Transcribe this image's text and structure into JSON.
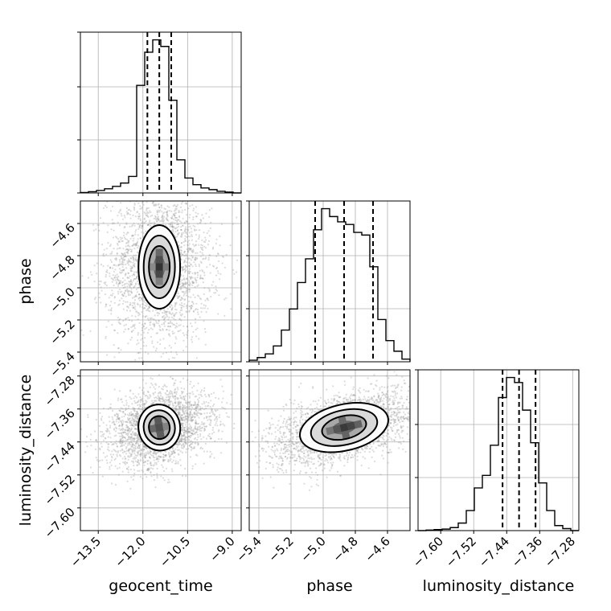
{
  "chart_data": {
    "type": "corner",
    "parameters": [
      "geocent_time",
      "phase",
      "luminosity_distance"
    ],
    "axis_labels": {
      "geocent_time": "geocent_time",
      "phase": "phase",
      "luminosity_distance": "luminosity_distance"
    },
    "ranges": {
      "geocent_time": [
        -14.1,
        -8.7
      ],
      "phase": [
        -5.46,
        -4.46
      ],
      "luminosity_distance": [
        -7.655,
        -7.265
      ]
    },
    "ticks": {
      "geocent_time": [
        -13.5,
        -12.0,
        -10.5,
        -9.0
      ],
      "phase": [
        -5.4,
        -5.2,
        -5.0,
        -4.8,
        -4.6
      ],
      "luminosity_distance": [
        -7.6,
        -7.52,
        -7.44,
        -7.36,
        -7.28
      ]
    },
    "tick_labels": {
      "geocent_time": [
        "−13.5",
        "−12.0",
        "−10.5",
        "−9.0"
      ],
      "phase": [
        "−5.4",
        "−5.2",
        "−5.0",
        "−4.8",
        "−4.6"
      ],
      "luminosity_distance": [
        "−7.60",
        "−7.52",
        "−7.44",
        "−7.36",
        "−7.28"
      ]
    },
    "quantiles": {
      "geocent_time": [
        -11.85,
        -11.45,
        -11.05
      ],
      "phase": [
        -5.05,
        -4.87,
        -4.69
      ],
      "luminosity_distance": [
        -7.45,
        -7.41,
        -7.37
      ]
    },
    "histograms": {
      "geocent_time": {
        "edges": [
          -14.1,
          -13.83,
          -13.56,
          -13.29,
          -13.02,
          -12.75,
          -12.48,
          -12.21,
          -11.94,
          -11.67,
          -11.4,
          -11.13,
          -10.86,
          -10.59,
          -10.32,
          -10.05,
          -9.78,
          -9.51,
          -9.24,
          -8.97,
          -8.7
        ],
        "counts": [
          0.5,
          1.5,
          3,
          5,
          8,
          12,
          20,
          130,
          170,
          185,
          177,
          112,
          40,
          18,
          10,
          6,
          4,
          2,
          1,
          0
        ]
      },
      "phase": {
        "edges": [
          -5.46,
          -5.41,
          -5.36,
          -5.31,
          -5.26,
          -5.21,
          -5.16,
          -5.11,
          -5.06,
          -5.01,
          -4.96,
          -4.91,
          -4.86,
          -4.81,
          -4.76,
          -4.71,
          -4.66,
          -4.61,
          -4.56,
          -4.51,
          -4.46
        ],
        "counts": [
          3,
          8,
          15,
          30,
          60,
          100,
          150,
          195,
          250,
          290,
          275,
          265,
          260,
          245,
          240,
          180,
          80,
          40,
          20,
          5
        ]
      },
      "luminosity_distance": {
        "edges": [
          -7.655,
          -7.6355,
          -7.616,
          -7.5965,
          -7.577,
          -7.5575,
          -7.538,
          -7.5185,
          -7.499,
          -7.4795,
          -7.46,
          -7.4405,
          -7.421,
          -7.4015,
          -7.382,
          -7.3625,
          -7.343,
          -7.3235,
          -7.304,
          -7.2845,
          -7.265
        ],
        "counts": [
          0,
          1,
          2,
          3,
          6,
          15,
          40,
          85,
          110,
          170,
          265,
          305,
          295,
          240,
          175,
          95,
          40,
          10,
          4,
          0
        ]
      }
    },
    "pairs": [
      {
        "x": "geocent_time",
        "y": "phase",
        "center": [
          -11.45,
          -4.87
        ],
        "sigma": [
          0.75,
          0.2
        ],
        "core_sigma": [
          0.35,
          0.13
        ],
        "correlation": 0.0
      },
      {
        "x": "geocent_time",
        "y": "luminosity_distance",
        "center": [
          -11.45,
          -7.405
        ],
        "sigma": [
          0.75,
          0.04
        ],
        "core_sigma": [
          0.35,
          0.028
        ],
        "correlation": 0.25
      },
      {
        "x": "phase",
        "y": "luminosity_distance",
        "center": [
          -4.87,
          -7.405
        ],
        "sigma": [
          0.2,
          0.04
        ],
        "core_sigma": [
          0.14,
          0.028
        ],
        "correlation": 0.5
      }
    ],
    "grid": true
  }
}
